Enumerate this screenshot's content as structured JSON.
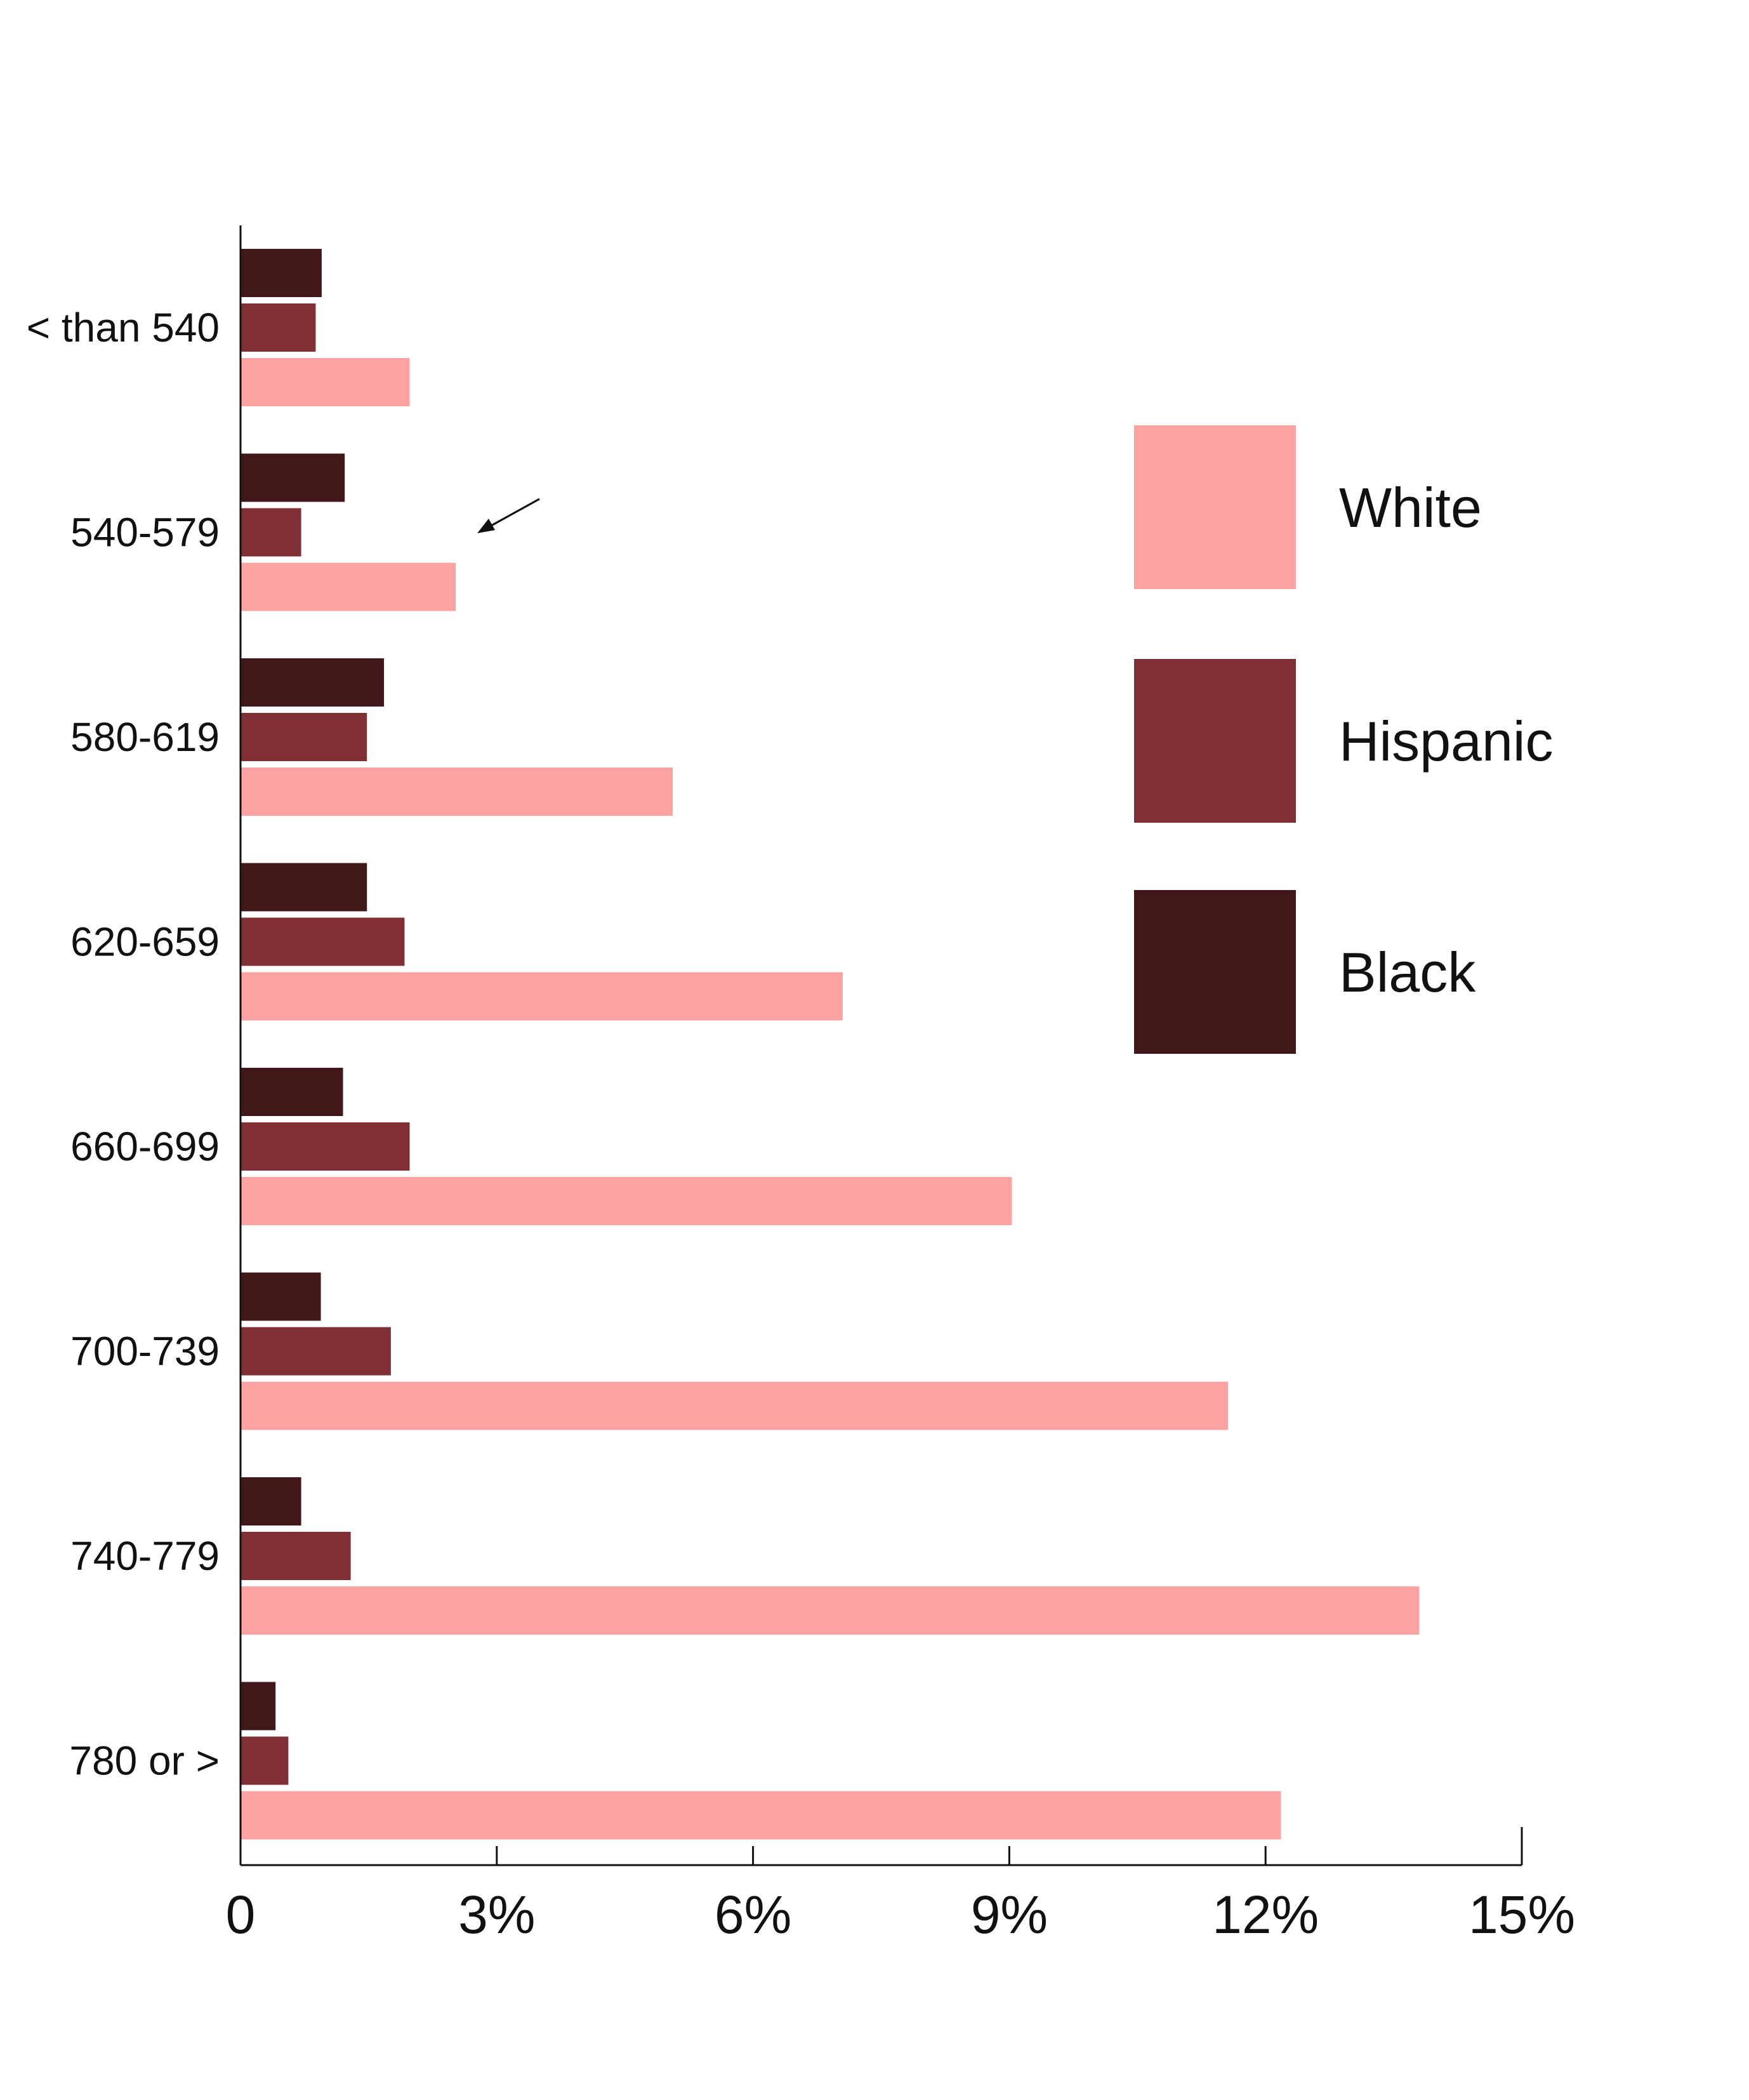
{
  "chart_data": {
    "type": "bar",
    "orientation": "horizontal",
    "categories": [
      "< than 540",
      "540-579",
      "580-619",
      "620-659",
      "660-699",
      "700-739",
      "740-779",
      "780 or >"
    ],
    "series": [
      {
        "name": "Black",
        "color": "#421719",
        "values": [
          0.95,
          1.22,
          1.68,
          1.48,
          1.2,
          0.94,
          0.71,
          0.41
        ]
      },
      {
        "name": "Hispanic",
        "color": "#803035",
        "values": [
          0.88,
          0.71,
          1.48,
          1.92,
          1.98,
          1.76,
          1.29,
          0.56
        ]
      },
      {
        "name": "White",
        "color": "#fda2a3",
        "values": [
          1.98,
          2.52,
          5.06,
          7.05,
          9.03,
          11.56,
          13.8,
          12.18
        ]
      }
    ],
    "x_ticks": [
      "0",
      "3%",
      "6%",
      "9%",
      "12%",
      "15%"
    ],
    "xlim": [
      0,
      15
    ],
    "legend": {
      "position": "right",
      "entries": [
        {
          "label": "White",
          "color": "#fda2a3"
        },
        {
          "label": "Hispanic",
          "color": "#803035"
        },
        {
          "label": "Black",
          "color": "#421719"
        }
      ]
    },
    "annotation": {
      "kind": "arrow",
      "points_to": "540-579"
    },
    "grid": false
  }
}
